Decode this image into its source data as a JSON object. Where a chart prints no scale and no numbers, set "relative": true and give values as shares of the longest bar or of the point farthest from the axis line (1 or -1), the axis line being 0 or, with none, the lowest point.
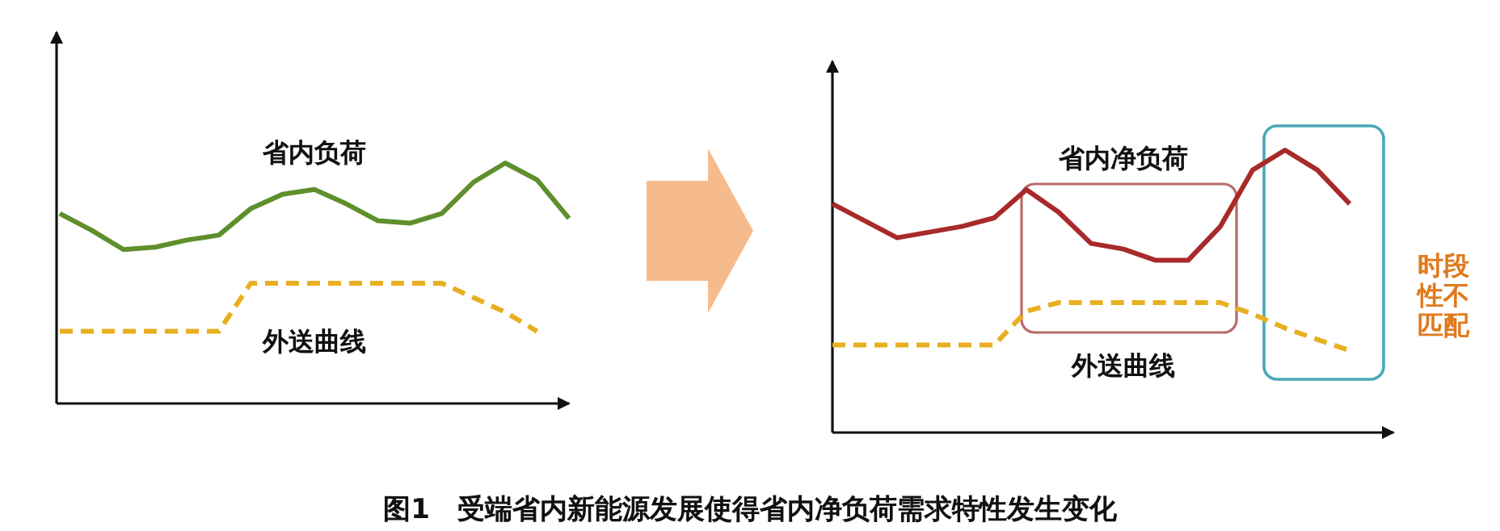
{
  "chart_data": [
    {
      "type": "line",
      "relative": true,
      "categories": [
        null,
        null,
        null,
        null,
        null,
        null,
        null,
        null,
        null,
        null,
        null,
        null,
        null,
        null,
        null,
        null,
        null
      ],
      "series": [
        {
          "name": "省内负荷",
          "color": "#5e8f2c",
          "line_style": "solid",
          "values": [
            0.79,
            0.72,
            0.64,
            0.65,
            0.68,
            0.7,
            0.81,
            0.87,
            0.89,
            0.83,
            0.76,
            0.75,
            0.79,
            0.92,
            1,
            0.93,
            0.77
          ]
        },
        {
          "name": "外送曲线",
          "color": "#e8b020",
          "line_style": "dashed",
          "values": [
            0.3,
            0.3,
            0.3,
            0.3,
            0.3,
            0.3,
            0.5,
            0.5,
            0.5,
            0.5,
            0.5,
            0.5,
            0.5,
            0.44,
            0.38,
            0.3,
            null
          ]
        }
      ]
    },
    {
      "type": "line",
      "relative": true,
      "categories": [
        null,
        null,
        null,
        null,
        null,
        null,
        null,
        null,
        null,
        null,
        null,
        null,
        null,
        null,
        null,
        null,
        null,
        null
      ],
      "series": [
        {
          "name": "省内净负荷",
          "color": "#a82a2a",
          "line_style": "solid",
          "values": [
            0.81,
            0.75,
            0.69,
            0.71,
            0.73,
            0.76,
            0.86,
            0.78,
            0.67,
            0.65,
            0.61,
            0.61,
            0.73,
            0.93,
            1,
            0.93,
            0.81,
            null
          ]
        },
        {
          "name": "外送曲线",
          "color": "#e8b020",
          "line_style": "dashed",
          "values": [
            0.31,
            0.31,
            0.31,
            0.31,
            0.31,
            0.31,
            0.43,
            0.46,
            0.46,
            0.46,
            0.46,
            0.46,
            0.46,
            0.42,
            0.37,
            0.33,
            0.29,
            null
          ]
        }
      ],
      "annotations": [
        "时段性不匹配",
        "图1　受端省内新能源发展使得省内净负荷需求特性发生变化"
      ]
    }
  ]
}
